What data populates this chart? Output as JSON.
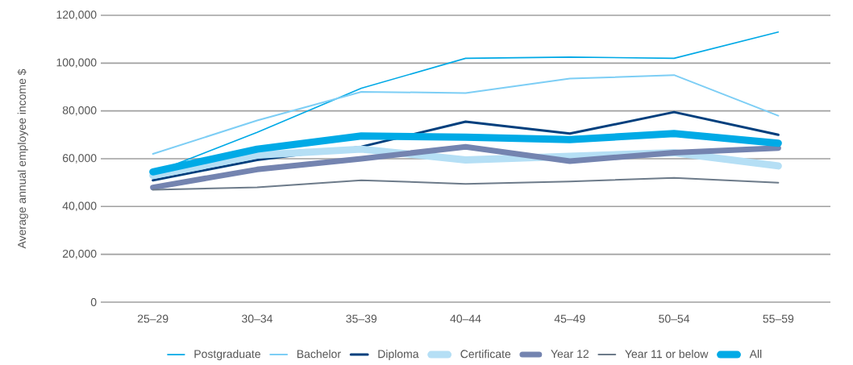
{
  "chart_data": {
    "type": "line",
    "ylabel": "Average annual employee income $",
    "categories": [
      "25–29",
      "30–34",
      "35–39",
      "40–44",
      "45–49",
      "50–54",
      "55–59"
    ],
    "series": [
      {
        "name": "Postgraduate",
        "color": "#00a9e6",
        "values": [
          54000,
          71000,
          89500,
          102000,
          102500,
          102000,
          113000
        ]
      },
      {
        "name": "Bachelor",
        "color": "#7dcef5",
        "values": [
          62000,
          76000,
          88000,
          87500,
          93500,
          95000,
          78000
        ]
      },
      {
        "name": "Diploma",
        "color": "#003f7d",
        "values": [
          51000,
          59500,
          65000,
          75500,
          70500,
          79500,
          70000
        ]
      },
      {
        "name": "Certificate",
        "color": "#b5dff5",
        "values": [
          53000,
          61500,
          64000,
          59500,
          61000,
          62500,
          57000
        ]
      },
      {
        "name": "Year 12",
        "color": "#7484b0",
        "values": [
          48000,
          55500,
          60000,
          65000,
          59000,
          62500,
          64500
        ]
      },
      {
        "name": "Year 11 or below",
        "color": "#6d7b8a",
        "values": [
          47000,
          48000,
          51000,
          49500,
          50500,
          52000,
          50000
        ]
      },
      {
        "name": "All",
        "color": "#00aae6",
        "values": [
          54500,
          64000,
          69500,
          69000,
          68000,
          70500,
          66500
        ]
      }
    ],
    "ylim": [
      0,
      120000
    ],
    "yticks": [
      0,
      {
        "value": 20000,
        "label": "20,000"
      },
      {
        "value": 40000,
        "label": "40,000"
      },
      {
        "value": 60000,
        "label": "60,000"
      },
      {
        "value": 80000,
        "label": "80,000"
      },
      {
        "value": 100000,
        "label": "100,000"
      },
      {
        "value": 120000,
        "label": "120,000"
      }
    ],
    "grid": "y",
    "legend": "bottom",
    "marker": "none",
    "line_style": "solid"
  }
}
